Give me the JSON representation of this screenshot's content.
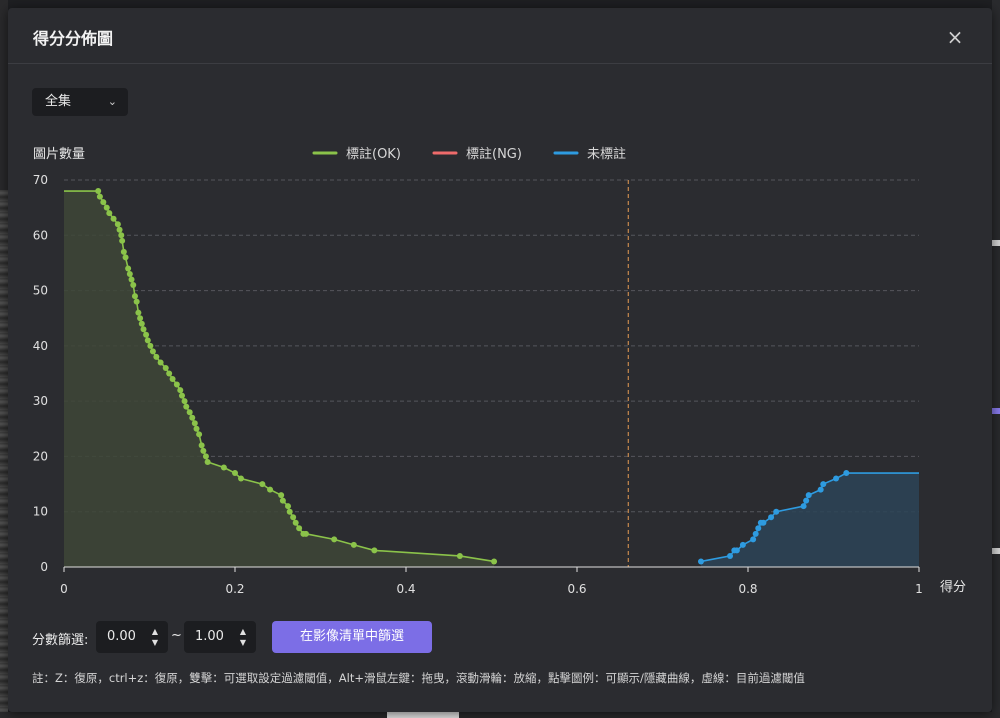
{
  "dialog": {
    "title": "得分分佈圖",
    "close_icon": "×"
  },
  "dataset_select": {
    "value": "全集",
    "chevron": "⌄"
  },
  "chart_data": {
    "type": "line",
    "ylabel": "圖片數量",
    "xlabel": "得分",
    "xlim": [
      0,
      1
    ],
    "ylim": [
      0,
      70
    ],
    "x_ticks": [
      "0",
      "0.2",
      "0.4",
      "0.6",
      "0.8",
      "1"
    ],
    "y_ticks": [
      "0",
      "10",
      "20",
      "30",
      "40",
      "50",
      "60",
      "70"
    ],
    "grid": "horizontal dashed",
    "legend_position": "top-center",
    "threshold_line": 0.66,
    "series": [
      {
        "name": "標註(OK)",
        "color": "#8bc34a",
        "area_fill": "#3e4737",
        "x": [
          0.0,
          0.04,
          0.042,
          0.046,
          0.05,
          0.053,
          0.058,
          0.063,
          0.065,
          0.067,
          0.068,
          0.07,
          0.072,
          0.075,
          0.077,
          0.079,
          0.081,
          0.083,
          0.085,
          0.087,
          0.089,
          0.091,
          0.093,
          0.096,
          0.098,
          0.101,
          0.104,
          0.108,
          0.113,
          0.119,
          0.123,
          0.127,
          0.132,
          0.136,
          0.138,
          0.141,
          0.143,
          0.147,
          0.15,
          0.153,
          0.155,
          0.158,
          0.161,
          0.163,
          0.166,
          0.168,
          0.187,
          0.2,
          0.207,
          0.232,
          0.241,
          0.254,
          0.256,
          0.262,
          0.264,
          0.268,
          0.271,
          0.275,
          0.28,
          0.283,
          0.316,
          0.339,
          0.363,
          0.463,
          0.503
        ],
        "values": [
          68,
          68,
          67,
          66,
          65,
          64,
          63,
          62,
          61,
          60,
          59,
          57,
          56,
          54,
          53,
          52,
          51,
          49,
          48,
          46,
          45,
          44,
          43,
          42,
          41,
          40,
          39,
          38,
          37,
          36,
          35,
          34,
          33,
          32,
          31,
          30,
          29,
          28,
          27,
          26,
          25,
          24,
          22,
          21,
          20,
          19,
          18,
          17,
          16,
          15,
          14,
          13,
          12,
          11,
          10,
          9,
          8,
          7,
          6,
          6,
          5,
          4,
          3,
          2,
          1
        ]
      },
      {
        "name": "標註(NG)",
        "color": "#ef6b6b",
        "x": [],
        "values": []
      },
      {
        "name": "未標註",
        "color": "#2e9be0",
        "area_fill": "#2d4457",
        "x": [
          0.745,
          0.779,
          0.784,
          0.787,
          0.794,
          0.806,
          0.809,
          0.812,
          0.815,
          0.818,
          0.827,
          0.833,
          0.865,
          0.868,
          0.871,
          0.885,
          0.888,
          0.903,
          0.915,
          1.0
        ],
        "values": [
          1,
          2,
          3,
          3,
          4,
          5,
          6,
          7,
          8,
          8,
          9,
          10,
          11,
          12,
          13,
          14,
          15,
          16,
          17,
          17
        ]
      }
    ]
  },
  "filter": {
    "label": "分數篩選:",
    "min_value": "0.00",
    "max_value": "1.00",
    "separator": "~",
    "button_label": "在影像清單中篩選",
    "spin_up": "▲",
    "spin_down": "▼"
  },
  "note": "註：Z：復原，ctrl+z：復原，雙擊：可選取設定過濾閾值，Alt+滑鼠左鍵：拖曳，滾動滑輪：放縮，點擊圖例：可顯示/隱藏曲線，虛線：目前過濾閾值"
}
